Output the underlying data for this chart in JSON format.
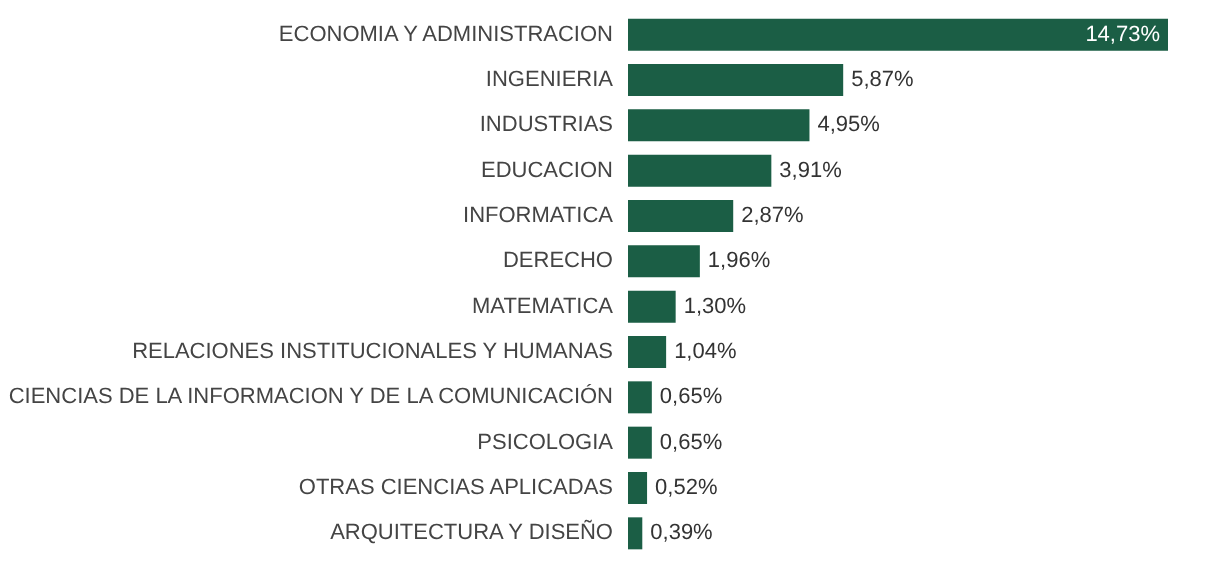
{
  "chart_data": {
    "type": "bar",
    "orientation": "horizontal",
    "categories": [
      "ECONOMIA Y ADMINISTRACION",
      "INGENIERIA",
      "INDUSTRIAS",
      "EDUCACION",
      "INFORMATICA",
      "DERECHO",
      "MATEMATICA",
      "RELACIONES INSTITUCIONALES Y HUMANAS",
      "CIENCIAS DE LA INFORMACION Y DE LA COMUNICACIÓN",
      "PSICOLOGIA",
      "OTRAS CIENCIAS APLICADAS",
      "ARQUITECTURA Y DISEÑO"
    ],
    "values": [
      14.73,
      5.87,
      4.95,
      3.91,
      2.87,
      1.96,
      1.3,
      1.04,
      0.65,
      0.65,
      0.52,
      0.39
    ],
    "value_labels": [
      "14,73%",
      "5,87%",
      "4,95%",
      "3,91%",
      "2,87%",
      "1,96%",
      "1,30%",
      "1,04%",
      "0,65%",
      "0,65%",
      "0,52%",
      "0,39%"
    ],
    "color": "#1b5e45"
  }
}
